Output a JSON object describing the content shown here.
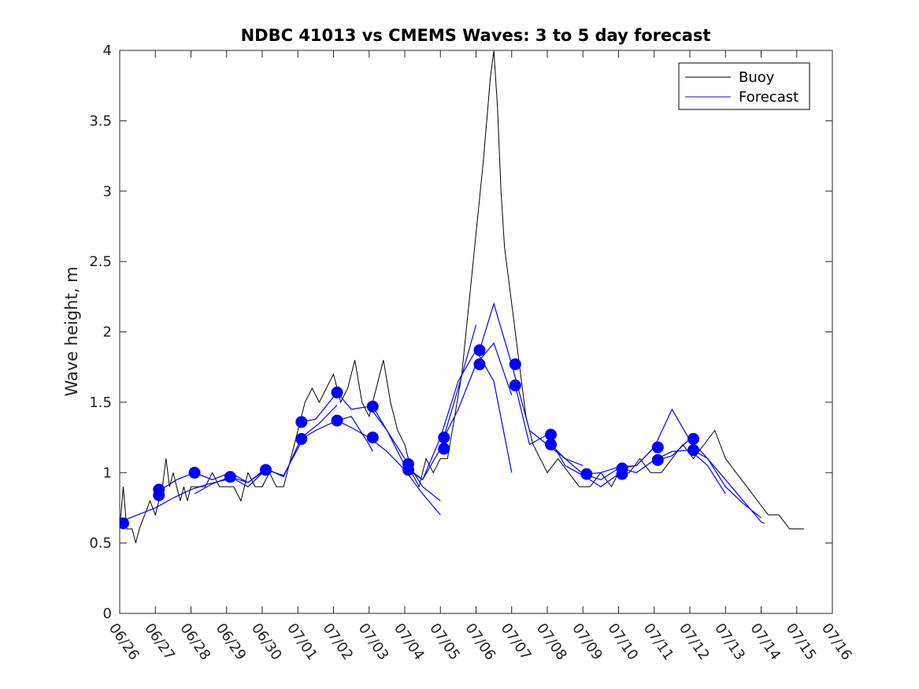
{
  "chart_data": {
    "type": "line",
    "title": "NDBC 41013 vs CMEMS Waves: 3 to 5 day forecast",
    "ylabel": "Wave height, m",
    "xlabel": "",
    "ylim": [
      0,
      4
    ],
    "yticks": [
      "0",
      "0.5",
      "1",
      "1.5",
      "2",
      "2.5",
      "3",
      "3.5",
      "4"
    ],
    "xlim": [
      0,
      20
    ],
    "xticks": [
      "06/26",
      "06/27",
      "06/28",
      "06/29",
      "06/30",
      "07/01",
      "07/02",
      "07/03",
      "07/04",
      "07/05",
      "07/06",
      "07/07",
      "07/08",
      "07/09",
      "07/10",
      "07/11",
      "07/12",
      "07/13",
      "07/14",
      "07/15",
      "07/16"
    ],
    "grid": false,
    "legend": {
      "position": "top-right",
      "entries": [
        "Buoy",
        "Forecast"
      ]
    },
    "colors": {
      "buoy": "#000000",
      "forecast": "#0000ff",
      "markers": "#0000ff"
    },
    "series": [
      {
        "name": "Buoy",
        "x": [
          0.0,
          0.1,
          0.2,
          0.35,
          0.45,
          0.55,
          0.7,
          0.85,
          1.0,
          1.2,
          1.3,
          1.4,
          1.5,
          1.6,
          1.7,
          1.8,
          1.9,
          2.0,
          2.2,
          2.4,
          2.6,
          2.8,
          3.0,
          3.2,
          3.4,
          3.6,
          3.8,
          4.0,
          4.2,
          4.4,
          4.6,
          4.8,
          5.0,
          5.2,
          5.4,
          5.6,
          5.8,
          6.0,
          6.2,
          6.4,
          6.6,
          6.8,
          7.0,
          7.2,
          7.4,
          7.6,
          7.8,
          8.0,
          8.2,
          8.4,
          8.6,
          8.8,
          9.0,
          9.2,
          9.4,
          9.6,
          9.8,
          10.0,
          10.2,
          10.3,
          10.4,
          10.5,
          10.6,
          10.7,
          10.8,
          11.0,
          11.2,
          11.4,
          11.6,
          11.8,
          12.0,
          12.3,
          12.6,
          12.9,
          13.2,
          13.5,
          13.8,
          14.0,
          14.3,
          14.6,
          14.9,
          15.2,
          15.5,
          15.8,
          16.1,
          16.4,
          16.7,
          17.0,
          17.3,
          17.6,
          17.9,
          18.2,
          18.5,
          18.8,
          19.0,
          19.2
        ],
        "values": [
          0.6,
          0.9,
          0.6,
          0.6,
          0.5,
          0.6,
          0.7,
          0.8,
          0.7,
          0.9,
          1.1,
          0.9,
          1.0,
          0.9,
          0.8,
          0.9,
          0.8,
          0.9,
          0.9,
          0.9,
          1.0,
          0.9,
          0.9,
          0.9,
          0.8,
          1.0,
          0.9,
          0.9,
          1.0,
          0.9,
          0.9,
          1.1,
          1.3,
          1.5,
          1.6,
          1.5,
          1.6,
          1.7,
          1.5,
          1.6,
          1.8,
          1.5,
          1.4,
          1.6,
          1.8,
          1.5,
          1.3,
          1.2,
          1.0,
          0.9,
          1.1,
          1.0,
          1.1,
          1.1,
          1.4,
          1.7,
          2.2,
          2.7,
          3.2,
          3.5,
          3.8,
          4.0,
          3.6,
          3.0,
          2.6,
          2.2,
          1.8,
          1.4,
          1.2,
          1.1,
          1.0,
          1.1,
          1.0,
          0.9,
          0.9,
          1.0,
          0.9,
          1.0,
          1.0,
          1.1,
          1.0,
          1.0,
          1.1,
          1.2,
          1.1,
          1.2,
          1.3,
          1.1,
          1.0,
          0.9,
          0.8,
          0.7,
          0.7,
          0.6,
          0.6,
          0.6
        ]
      },
      {
        "name": "Forecast",
        "segments": [
          {
            "x": [
              0.0,
              0.5,
              1.0,
              1.5,
              2.0,
              2.5,
              3.0
            ],
            "values": [
              0.65,
              0.7,
              0.75,
              0.82,
              0.88,
              0.92,
              0.95
            ]
          },
          {
            "x": [
              1.1,
              1.6,
              2.1,
              2.6,
              3.1,
              3.6,
              4.1
            ],
            "values": [
              0.87,
              0.95,
              1.0,
              0.95,
              1.0,
              0.93,
              1.02
            ]
          },
          {
            "x": [
              2.1,
              2.6,
              3.1,
              3.6,
              4.1,
              4.6,
              5.1
            ],
            "values": [
              0.85,
              0.92,
              0.97,
              0.9,
              1.02,
              0.98,
              1.22
            ]
          },
          {
            "x": [
              3.1,
              3.6,
              4.1,
              4.6,
              5.1,
              5.6,
              6.1
            ],
            "values": [
              0.97,
              0.93,
              1.03,
              0.97,
              1.25,
              1.35,
              1.48
            ]
          },
          {
            "x": [
              5.1,
              5.5,
              6.1,
              6.5,
              7.0,
              7.5,
              8.0,
              8.5,
              9.0
            ],
            "values": [
              1.36,
              1.38,
              1.57,
              1.45,
              1.47,
              1.3,
              1.1,
              0.9,
              0.8
            ]
          },
          {
            "x": [
              5.1,
              5.5,
              6.1,
              6.5,
              7.0,
              7.5,
              8.0,
              8.5,
              9.0
            ],
            "values": [
              1.24,
              1.3,
              1.37,
              1.32,
              1.25,
              1.15,
              1.02,
              0.85,
              0.7
            ]
          },
          {
            "x": [
              6.1,
              6.5,
              7.0,
              7.1
            ],
            "values": [
              1.37,
              1.4,
              1.2,
              1.15
            ]
          },
          {
            "x": [
              7.1,
              7.5,
              8.0,
              8.5,
              9.0,
              9.5,
              10.0
            ],
            "values": [
              1.47,
              1.3,
              1.05,
              0.95,
              1.17,
              1.6,
              2.05
            ]
          },
          {
            "x": [
              8.1,
              8.5,
              9.0,
              9.5,
              10.0,
              10.5,
              11.0
            ],
            "values": [
              1.02,
              0.95,
              1.25,
              1.65,
              1.87,
              1.65,
              1.0
            ]
          },
          {
            "x": [
              9.1,
              9.5,
              10.0,
              10.5,
              11.0
            ],
            "values": [
              1.25,
              1.45,
              1.77,
              1.92,
              1.55
            ]
          },
          {
            "x": [
              10.1,
              10.5,
              11.0,
              11.5,
              12.0,
              12.5,
              13.0
            ],
            "values": [
              1.87,
              2.2,
              1.77,
              1.3,
              1.2,
              1.1,
              1.05
            ]
          },
          {
            "x": [
              11.1,
              11.5,
              12.0,
              12.5,
              13.0,
              13.5,
              14.0
            ],
            "values": [
              1.62,
              1.2,
              1.27,
              1.05,
              0.98,
              0.9,
              0.99
            ]
          },
          {
            "x": [
              12.1,
              12.5,
              13.0,
              13.5,
              14.0,
              14.5,
              15.0
            ],
            "values": [
              1.2,
              1.1,
              0.99,
              0.95,
              1.03,
              1.05,
              1.18
            ]
          },
          {
            "x": [
              13.1,
              13.5,
              14.0,
              14.5,
              15.0,
              15.5,
              16.0
            ],
            "values": [
              0.99,
              1.0,
              1.04,
              1.05,
              1.18,
              1.45,
              1.23
            ]
          },
          {
            "x": [
              14.1,
              14.5,
              15.0,
              15.5,
              16.0,
              16.5,
              17.0
            ],
            "values": [
              1.03,
              1.0,
              1.09,
              1.15,
              1.16,
              1.05,
              0.85
            ]
          },
          {
            "x": [
              15.1,
              15.5,
              16.0,
              16.5,
              17.0,
              17.5,
              18.0
            ],
            "values": [
              1.09,
              1.12,
              1.24,
              1.1,
              0.9,
              0.78,
              0.68
            ]
          },
          {
            "x": [
              16.1,
              16.5,
              17.0,
              17.5,
              18.0,
              18.1
            ],
            "values": [
              1.16,
              1.1,
              0.95,
              0.8,
              0.65,
              0.64
            ]
          }
        ]
      },
      {
        "name": "Forecast markers",
        "x": [
          0.1,
          1.1,
          1.1,
          2.1,
          3.1,
          4.1,
          5.1,
          5.1,
          6.1,
          6.1,
          7.1,
          7.1,
          8.1,
          8.1,
          9.1,
          9.1,
          10.1,
          10.1,
          11.1,
          11.1,
          12.1,
          12.1,
          13.1,
          14.1,
          14.1,
          15.1,
          15.1,
          16.1,
          16.1
        ],
        "values": [
          0.64,
          0.84,
          0.88,
          1.0,
          0.97,
          1.02,
          1.36,
          1.24,
          1.57,
          1.37,
          1.47,
          1.25,
          1.06,
          1.02,
          1.25,
          1.17,
          1.87,
          1.77,
          1.77,
          1.62,
          1.27,
          1.2,
          0.99,
          1.03,
          0.99,
          1.18,
          1.09,
          1.24,
          1.16
        ]
      }
    ]
  }
}
